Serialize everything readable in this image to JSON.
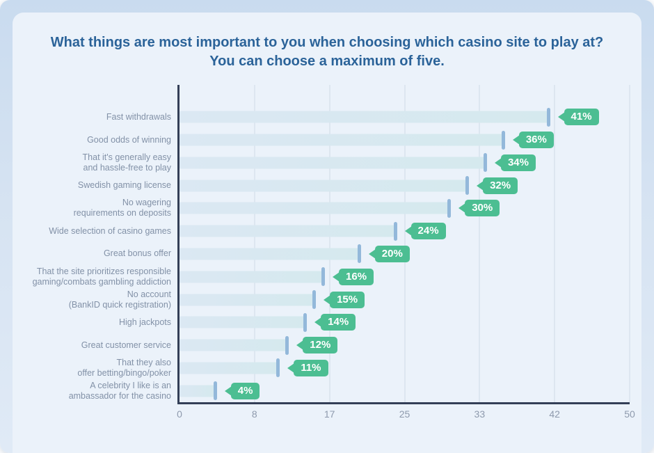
{
  "header": {
    "title_display": "What things are most important to you when choosing which casino site to play at?\nYou can choose a maximum of five."
  },
  "chart_data": {
    "type": "bar",
    "orientation": "horizontal",
    "title": "What things are most important to you when choosing which casino site to play at? You can choose a maximum of five.",
    "categories": [
      "Fast withdrawals",
      "Good odds of winning",
      "That it's generally easy and hassle-free to play",
      "Swedish gaming license",
      "No wagering requirements on deposits",
      "Wide selection of casino games",
      "Great bonus offer",
      "That the site prioritizes responsible gaming/combats gambling addiction",
      "No account (BankID quick registration)",
      "High jackpots",
      "Great customer service",
      "That they also offer betting/bingo/poker",
      "A celebrity I like is an ambassador for the casino"
    ],
    "categories_display": [
      "Fast withdrawals",
      "Good odds of winning",
      "That it's generally easy\nand hassle-free to play",
      "Swedish gaming license",
      "No wagering\nrequirements on deposits",
      "Wide selection of casino games",
      "Great bonus offer",
      "That the site prioritizes responsible\ngaming/combats gambling addiction",
      "No account\n(BankID quick registration)",
      "High jackpots",
      "Great customer service",
      "That they also\noffer betting/bingo/poker",
      "A celebrity I like is an\nambassador for the casino"
    ],
    "values": [
      41,
      36,
      34,
      32,
      30,
      24,
      20,
      16,
      15,
      14,
      12,
      11,
      4
    ],
    "value_labels": [
      "41%",
      "36%",
      "34%",
      "32%",
      "30%",
      "24%",
      "20%",
      "16%",
      "15%",
      "14%",
      "12%",
      "11%",
      "4%"
    ],
    "xlabel": "",
    "ylabel": "",
    "xlim": [
      0,
      50
    ],
    "x_tick_labels": [
      "0",
      "8",
      "17",
      "25",
      "33",
      "42",
      "50"
    ],
    "grid": "vertical",
    "legend": "none",
    "colors": {
      "badge_green": "#4cbe92",
      "bar_fill_start": "#dbe8f3",
      "bar_fill_end": "#d5e9ee",
      "bar_end_cap": "#93b8da",
      "axis": "#333f57",
      "gridline": "#cfdae5",
      "title_text": "#2b6399",
      "category_label_text": "#8291a7",
      "tick_text": "#8e9aad",
      "card_background": "#ebf2fa",
      "outer_background_top": "#c9dbef",
      "outer_background_bottom": "#e0eaf6"
    }
  }
}
